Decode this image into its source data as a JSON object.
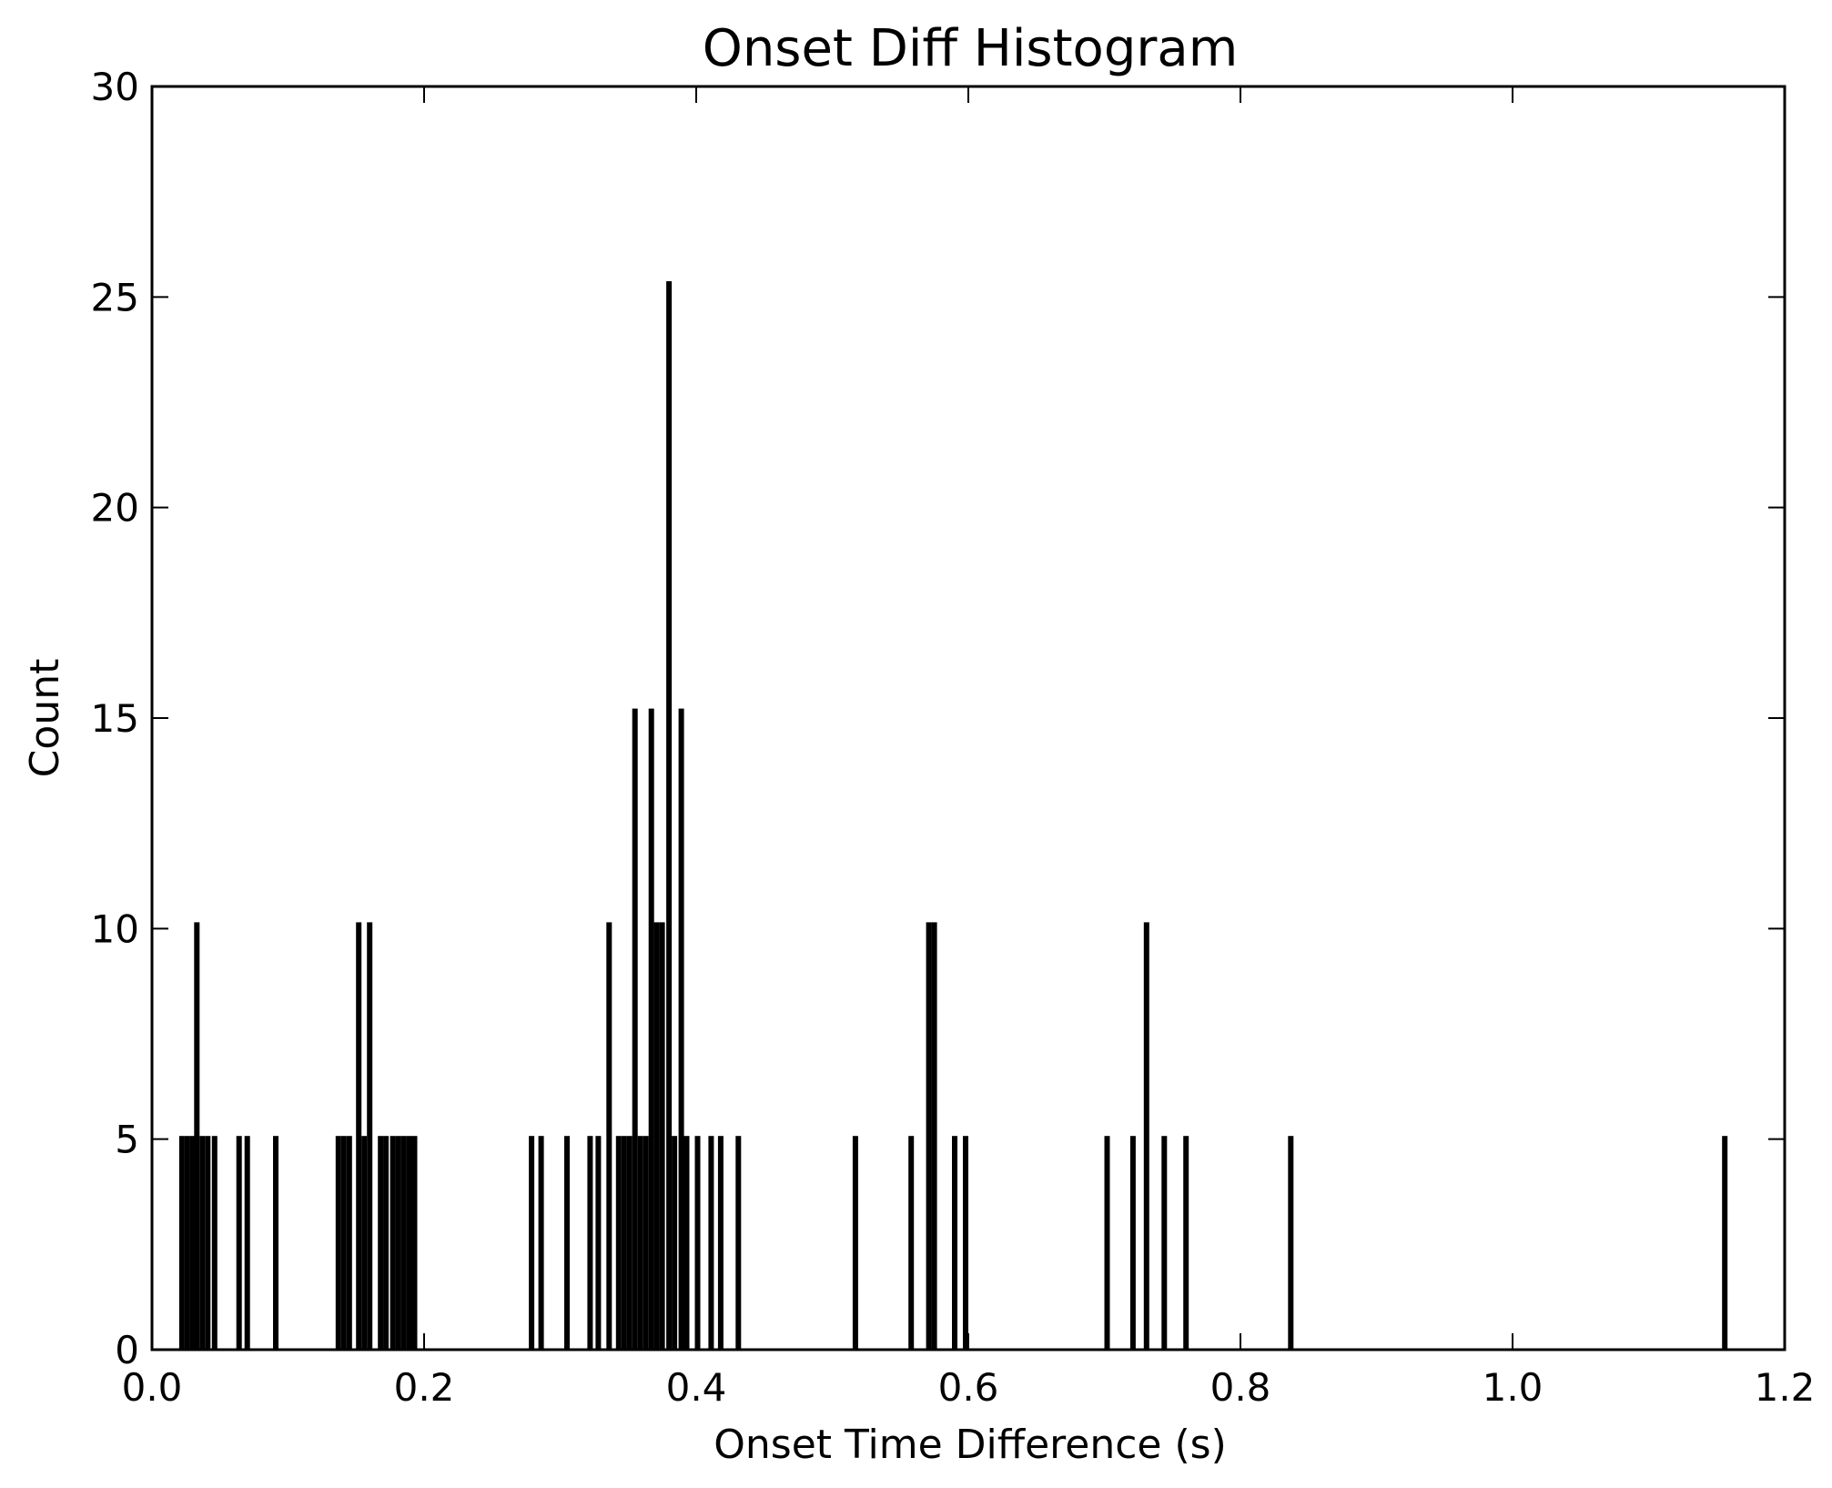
{
  "chart_data": {
    "type": "bar",
    "title": "Onset Diff Histogram",
    "xlabel": "Onset Time Difference (s)",
    "ylabel": "Count",
    "xlim": [
      0.0,
      1.2
    ],
    "ylim": [
      0,
      30
    ],
    "xticks": [
      "0.0",
      "0.2",
      "0.4",
      "0.6",
      "0.8",
      "1.0",
      "1.2"
    ],
    "yticks": [
      "0",
      "5",
      "10",
      "15",
      "20",
      "25",
      "30"
    ],
    "grid": false,
    "bar_color": "#000000",
    "bin_width": 0.004,
    "bars": [
      {
        "x": 0.022,
        "value": 5
      },
      {
        "x": 0.026,
        "value": 5
      },
      {
        "x": 0.03,
        "value": 5
      },
      {
        "x": 0.033,
        "value": 10
      },
      {
        "x": 0.037,
        "value": 5
      },
      {
        "x": 0.041,
        "value": 5
      },
      {
        "x": 0.046,
        "value": 5
      },
      {
        "x": 0.064,
        "value": 5
      },
      {
        "x": 0.07,
        "value": 5
      },
      {
        "x": 0.091,
        "value": 5
      },
      {
        "x": 0.137,
        "value": 5
      },
      {
        "x": 0.141,
        "value": 5
      },
      {
        "x": 0.145,
        "value": 5
      },
      {
        "x": 0.152,
        "value": 10
      },
      {
        "x": 0.156,
        "value": 5
      },
      {
        "x": 0.16,
        "value": 10
      },
      {
        "x": 0.168,
        "value": 5
      },
      {
        "x": 0.172,
        "value": 5
      },
      {
        "x": 0.177,
        "value": 5
      },
      {
        "x": 0.181,
        "value": 5
      },
      {
        "x": 0.185,
        "value": 5
      },
      {
        "x": 0.189,
        "value": 5
      },
      {
        "x": 0.193,
        "value": 5
      },
      {
        "x": 0.279,
        "value": 5
      },
      {
        "x": 0.286,
        "value": 5
      },
      {
        "x": 0.305,
        "value": 5
      },
      {
        "x": 0.322,
        "value": 5
      },
      {
        "x": 0.328,
        "value": 5
      },
      {
        "x": 0.336,
        "value": 10
      },
      {
        "x": 0.343,
        "value": 5
      },
      {
        "x": 0.347,
        "value": 5
      },
      {
        "x": 0.351,
        "value": 5
      },
      {
        "x": 0.355,
        "value": 15
      },
      {
        "x": 0.359,
        "value": 5
      },
      {
        "x": 0.363,
        "value": 5
      },
      {
        "x": 0.367,
        "value": 15
      },
      {
        "x": 0.371,
        "value": 10
      },
      {
        "x": 0.375,
        "value": 10
      },
      {
        "x": 0.38,
        "value": 25
      },
      {
        "x": 0.384,
        "value": 5
      },
      {
        "x": 0.389,
        "value": 15
      },
      {
        "x": 0.393,
        "value": 5
      },
      {
        "x": 0.401,
        "value": 5
      },
      {
        "x": 0.411,
        "value": 5
      },
      {
        "x": 0.418,
        "value": 5
      },
      {
        "x": 0.431,
        "value": 5
      },
      {
        "x": 0.517,
        "value": 5
      },
      {
        "x": 0.558,
        "value": 5
      },
      {
        "x": 0.571,
        "value": 10
      },
      {
        "x": 0.575,
        "value": 10
      },
      {
        "x": 0.59,
        "value": 5
      },
      {
        "x": 0.598,
        "value": 5
      },
      {
        "x": 0.702,
        "value": 5
      },
      {
        "x": 0.721,
        "value": 5
      },
      {
        "x": 0.731,
        "value": 10
      },
      {
        "x": 0.744,
        "value": 5
      },
      {
        "x": 0.76,
        "value": 5
      },
      {
        "x": 0.837,
        "value": 5
      },
      {
        "x": 1.156,
        "value": 5
      }
    ]
  }
}
